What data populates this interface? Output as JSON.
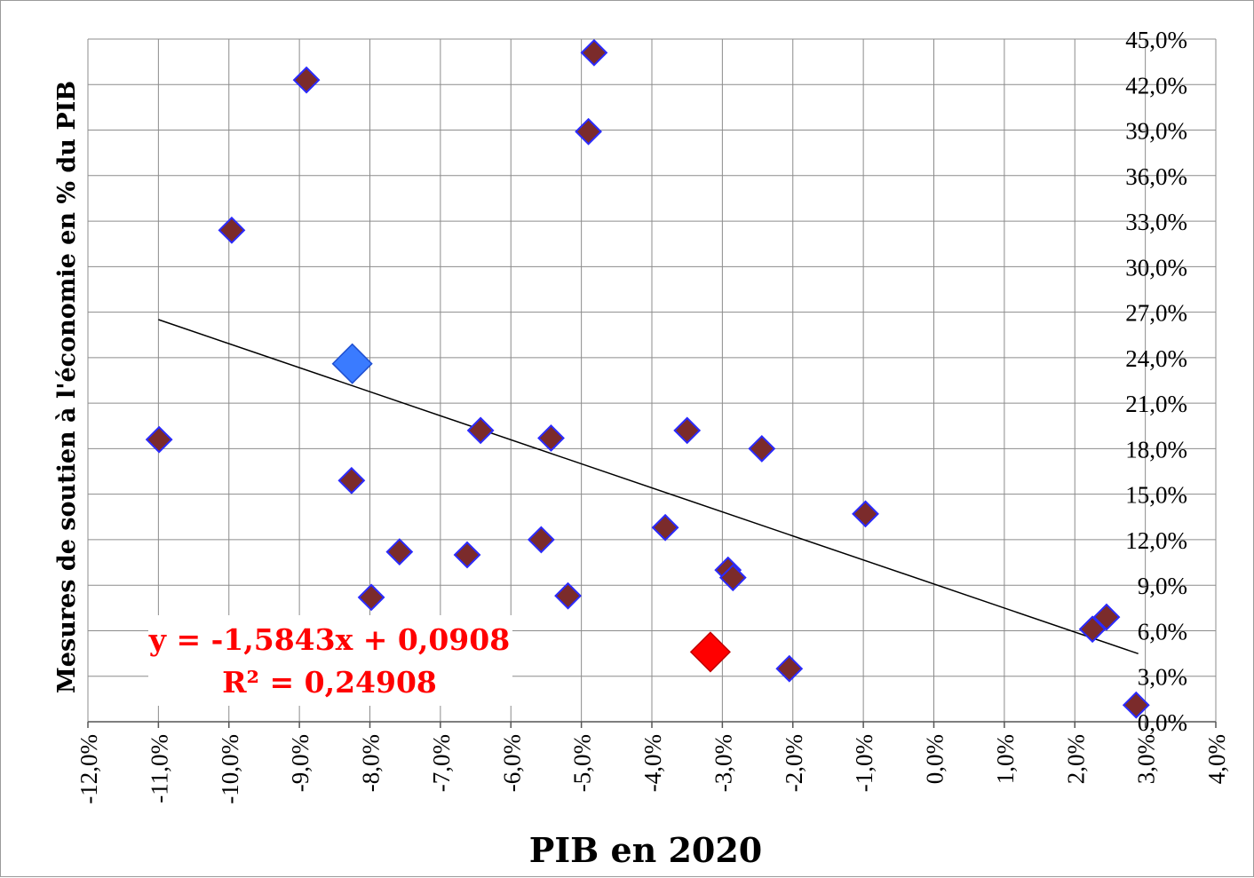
{
  "chart_data": {
    "type": "scatter",
    "xlabel": "PIB en 2020",
    "ylabel": "Mesures de soutien à l'économie en % du PIB",
    "xlim": [
      -0.12,
      0.04
    ],
    "ylim": [
      0,
      0.45
    ],
    "x_ticks": [
      "-12,0%",
      "-11,0%",
      "-10,0%",
      "-9,0%",
      "-8,0%",
      "-7,0%",
      "-6,0%",
      "-5,0%",
      "-4,0%",
      "-3,0%",
      "-2,0%",
      "-1,0%",
      "0,0%",
      "1,0%",
      "2,0%",
      "3,0%",
      "4,0%"
    ],
    "y_ticks": [
      "0,0%",
      "3,0%",
      "6,0%",
      "9,0%",
      "12,0%",
      "15,0%",
      "18,0%",
      "21,0%",
      "24,0%",
      "27,0%",
      "30,0%",
      "33,0%",
      "36,0%",
      "39,0%",
      "42,0%",
      "45,0%"
    ],
    "grid": true,
    "y_axis_side": "right",
    "marker_color": "#7b2b2b",
    "marker_edge_color": "#2a2aff",
    "series": [
      {
        "points": [
          {
            "x": -0.1099,
            "y": 0.186
          },
          {
            "x": -0.0996,
            "y": 0.324
          },
          {
            "x": -0.089,
            "y": 0.423
          },
          {
            "x": -0.0826,
            "y": 0.159
          },
          {
            "x": -0.0798,
            "y": 0.082
          },
          {
            "x": -0.0758,
            "y": 0.112
          },
          {
            "x": -0.0662,
            "y": 0.11
          },
          {
            "x": -0.0643,
            "y": 0.192
          },
          {
            "x": -0.0557,
            "y": 0.12
          },
          {
            "x": -0.0543,
            "y": 0.187
          },
          {
            "x": -0.0519,
            "y": 0.083
          },
          {
            "x": -0.049,
            "y": 0.389
          },
          {
            "x": -0.0482,
            "y": 0.441
          },
          {
            "x": -0.0381,
            "y": 0.128
          },
          {
            "x": -0.035,
            "y": 0.192
          },
          {
            "x": -0.0292,
            "y": 0.1
          },
          {
            "x": -0.0285,
            "y": 0.095
          },
          {
            "x": -0.0244,
            "y": 0.18
          },
          {
            "x": -0.0205,
            "y": 0.035
          },
          {
            "x": -0.0097,
            "y": 0.137
          },
          {
            "x": 0.0225,
            "y": 0.061
          },
          {
            "x": 0.0245,
            "y": 0.069
          },
          {
            "x": 0.0287,
            "y": 0.011
          }
        ]
      },
      {
        "color": "#3a7bff",
        "points": [
          {
            "x": -0.0825,
            "y": 0.236
          }
        ]
      },
      {
        "color": "#ff0000",
        "points": [
          {
            "x": -0.0317,
            "y": 0.046
          }
        ]
      }
    ],
    "trendline": {
      "slope": -1.5843,
      "intercept": 0.0908,
      "x_range": [
        -0.11,
        0.029
      ],
      "color": "#000000",
      "equation": "y = -1,5843x + 0,0908",
      "r2": "R² = 0,24908",
      "text_color": "#ff0000"
    }
  }
}
